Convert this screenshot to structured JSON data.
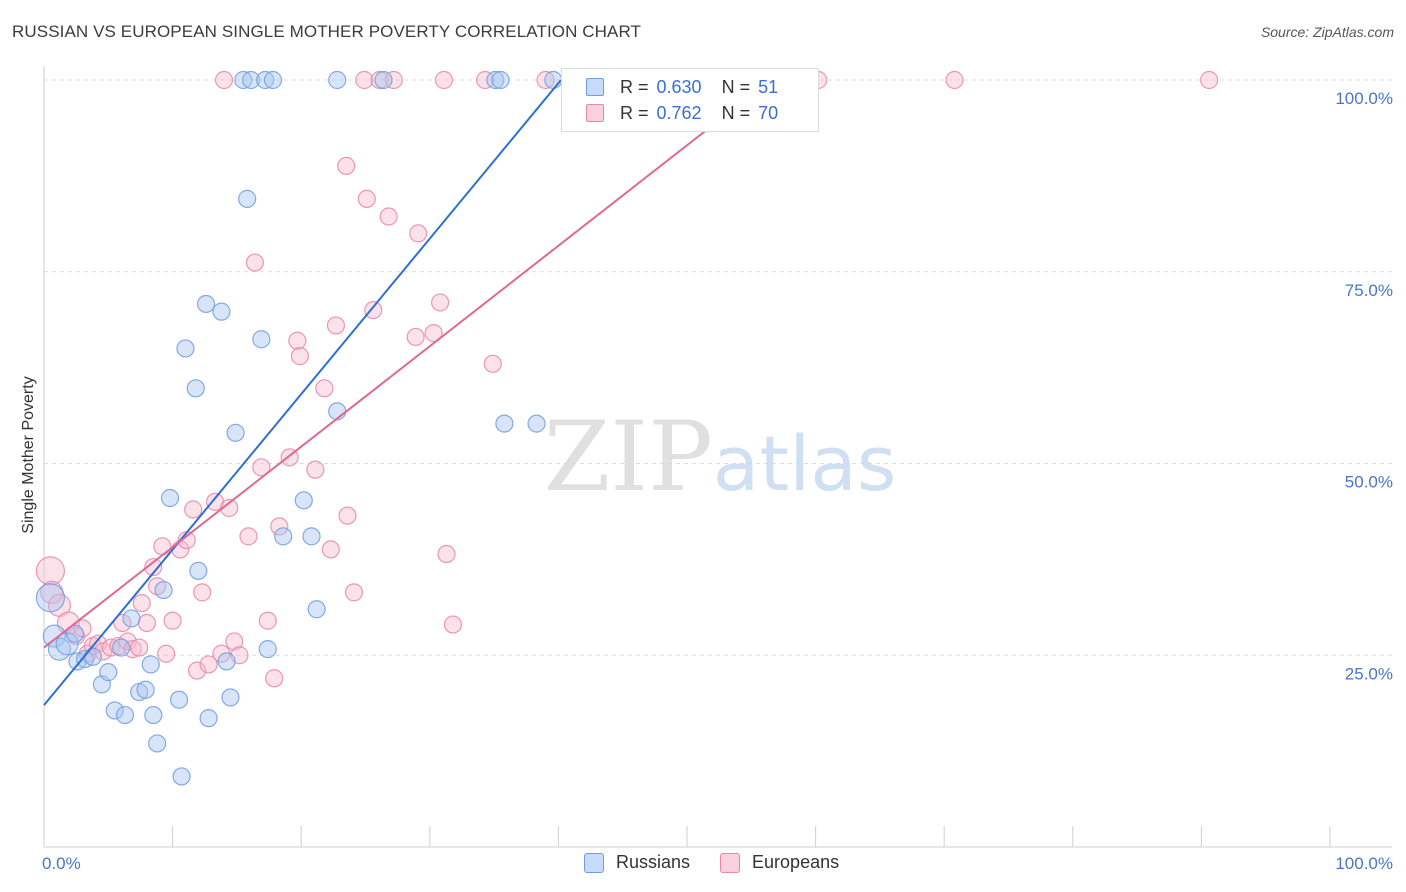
{
  "chart_data": {
    "type": "scatter",
    "title": "RUSSIAN VS EUROPEAN SINGLE MOTHER POVERTY CORRELATION CHART",
    "source": "Source: ZipAtlas.com",
    "xlabel": "",
    "ylabel": "Single Mother Poverty",
    "xlim": [
      0,
      100
    ],
    "ylim": [
      0,
      100
    ],
    "x_tick_labels": [
      "0.0%",
      "100.0%"
    ],
    "y_ticks": [
      25,
      50,
      75,
      100
    ],
    "y_tick_labels": [
      "25.0%",
      "50.0%",
      "75.0%",
      "100.0%"
    ],
    "grid": true,
    "watermark": "ZIPatlas",
    "series": [
      {
        "name": "Russians",
        "color": "#6f9ee0",
        "fill": "#a9c6f0",
        "R": "0.630",
        "N": "51",
        "trend": {
          "x": [
            0,
            40.2
          ],
          "y": [
            18.5,
            100
          ]
        },
        "points": [
          [
            0.5,
            32.5
          ],
          [
            0.8,
            27.5
          ],
          [
            1.2,
            25.8
          ],
          [
            1.8,
            26.5
          ],
          [
            2.4,
            27.8
          ],
          [
            2.6,
            24.2
          ],
          [
            3.2,
            24.5
          ],
          [
            3.8,
            24.8
          ],
          [
            4.5,
            21.2
          ],
          [
            5.0,
            22.8
          ],
          [
            5.5,
            17.8
          ],
          [
            6.0,
            26.0
          ],
          [
            6.3,
            17.2
          ],
          [
            6.8,
            29.8
          ],
          [
            7.4,
            20.2
          ],
          [
            7.9,
            20.5
          ],
          [
            8.3,
            23.8
          ],
          [
            8.5,
            17.2
          ],
          [
            8.8,
            13.5
          ],
          [
            9.3,
            33.5
          ],
          [
            9.8,
            45.5
          ],
          [
            10.5,
            19.2
          ],
          [
            10.7,
            9.2
          ],
          [
            11.0,
            65.0
          ],
          [
            11.8,
            59.8
          ],
          [
            12.0,
            36.0
          ],
          [
            12.6,
            70.8
          ],
          [
            12.8,
            16.8
          ],
          [
            13.8,
            69.8
          ],
          [
            14.2,
            24.2
          ],
          [
            14.5,
            19.5
          ],
          [
            14.9,
            54.0
          ],
          [
            15.5,
            100.0
          ],
          [
            15.8,
            84.5
          ],
          [
            16.1,
            100.0
          ],
          [
            16.9,
            66.2
          ],
          [
            17.2,
            100.0
          ],
          [
            17.4,
            25.8
          ],
          [
            17.8,
            100.0
          ],
          [
            18.6,
            40.5
          ],
          [
            20.2,
            45.2
          ],
          [
            20.8,
            40.5
          ],
          [
            21.2,
            31.0
          ],
          [
            22.8,
            56.8
          ],
          [
            22.8,
            100.0
          ],
          [
            26.4,
            100.0
          ],
          [
            35.1,
            100.0
          ],
          [
            35.5,
            100.0
          ],
          [
            35.8,
            55.2
          ],
          [
            38.3,
            55.2
          ],
          [
            39.6,
            100.0
          ]
        ]
      },
      {
        "name": "Europeans",
        "color": "#e887a8",
        "fill": "#f6bccf",
        "R": "0.762",
        "N": "70",
        "trend": {
          "x": [
            0,
            56.5
          ],
          "y": [
            26.0,
            100
          ]
        },
        "points": [
          [
            0.5,
            36.0
          ],
          [
            0.6,
            33.2
          ],
          [
            1.2,
            31.5
          ],
          [
            1.9,
            29.2
          ],
          [
            2.5,
            27.5
          ],
          [
            3.0,
            28.5
          ],
          [
            3.4,
            25.2
          ],
          [
            3.8,
            26.2
          ],
          [
            4.2,
            26.5
          ],
          [
            4.6,
            25.5
          ],
          [
            5.2,
            26.0
          ],
          [
            5.8,
            26.2
          ],
          [
            6.1,
            29.2
          ],
          [
            6.5,
            26.8
          ],
          [
            6.9,
            25.8
          ],
          [
            7.4,
            26.0
          ],
          [
            7.6,
            31.8
          ],
          [
            8.0,
            29.2
          ],
          [
            8.5,
            36.5
          ],
          [
            8.8,
            34.0
          ],
          [
            9.2,
            39.2
          ],
          [
            9.5,
            25.2
          ],
          [
            10.0,
            29.5
          ],
          [
            10.6,
            38.8
          ],
          [
            11.1,
            40.0
          ],
          [
            11.6,
            44.0
          ],
          [
            11.9,
            23.0
          ],
          [
            12.3,
            33.2
          ],
          [
            12.8,
            23.8
          ],
          [
            13.3,
            45.0
          ],
          [
            13.8,
            25.2
          ],
          [
            14.0,
            100.0
          ],
          [
            14.4,
            44.2
          ],
          [
            14.8,
            26.8
          ],
          [
            15.2,
            25.0
          ],
          [
            15.9,
            40.5
          ],
          [
            16.4,
            76.2
          ],
          [
            16.9,
            49.5
          ],
          [
            17.4,
            29.5
          ],
          [
            17.9,
            22.0
          ],
          [
            18.3,
            41.8
          ],
          [
            19.1,
            50.8
          ],
          [
            19.7,
            66.0
          ],
          [
            19.9,
            64.0
          ],
          [
            21.1,
            49.2
          ],
          [
            21.8,
            59.8
          ],
          [
            22.3,
            38.8
          ],
          [
            22.7,
            68.0
          ],
          [
            23.5,
            88.8
          ],
          [
            23.6,
            43.2
          ],
          [
            24.1,
            33.2
          ],
          [
            24.9,
            100.0
          ],
          [
            25.1,
            84.5
          ],
          [
            25.6,
            70.0
          ],
          [
            26.1,
            100.0
          ],
          [
            26.8,
            82.2
          ],
          [
            27.2,
            100.0
          ],
          [
            28.9,
            66.5
          ],
          [
            29.1,
            80.0
          ],
          [
            30.3,
            67.0
          ],
          [
            30.8,
            71.0
          ],
          [
            31.1,
            100.0
          ],
          [
            31.3,
            38.2
          ],
          [
            31.8,
            29.0
          ],
          [
            34.3,
            100.0
          ],
          [
            34.9,
            63.0
          ],
          [
            39.0,
            100.0
          ],
          [
            60.2,
            100.0
          ],
          [
            70.8,
            100.0
          ],
          [
            90.6,
            100.0
          ]
        ]
      }
    ]
  },
  "legend": {
    "r_label": "R =",
    "n_label": "N =",
    "series": [
      {
        "name": "Russians",
        "r": "0.630",
        "n": "51"
      },
      {
        "name": "Europeans",
        "r": "0.762",
        "n": "70"
      }
    ]
  }
}
